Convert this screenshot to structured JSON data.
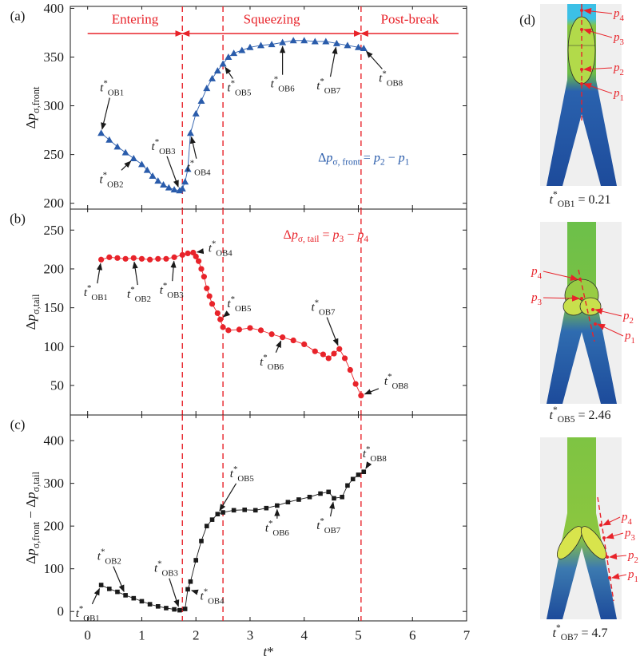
{
  "chart_data": [
    {
      "type": "line",
      "panel": "(a)",
      "ylabel": [
        {
          "t": "Δ"
        },
        {
          "it": "p"
        },
        {
          "sub": "σ,front"
        }
      ],
      "x": [
        0.25,
        0.4,
        0.55,
        0.7,
        0.85,
        1.0,
        1.1,
        1.2,
        1.3,
        1.4,
        1.5,
        1.6,
        1.7,
        1.75,
        1.8,
        1.85,
        1.9,
        2.0,
        2.1,
        2.2,
        2.3,
        2.4,
        2.5,
        2.6,
        2.7,
        2.85,
        3.0,
        3.2,
        3.4,
        3.6,
        3.8,
        4.0,
        4.2,
        4.4,
        4.6,
        4.8,
        5.0,
        5.1
      ],
      "series": [
        {
          "color": "#2a5cab",
          "marker": "triangle",
          "values": [
            272,
            265,
            258,
            252,
            246,
            240,
            234,
            228,
            223,
            219,
            216,
            214,
            213,
            215,
            222,
            235,
            272,
            292,
            305,
            318,
            328,
            336,
            343,
            350,
            354,
            357,
            360,
            362,
            363,
            365,
            367,
            367,
            366,
            366,
            364,
            362,
            360,
            359
          ]
        }
      ],
      "xlim": [
        -0.32,
        7
      ],
      "xticks": [
        0,
        1,
        2,
        3,
        4,
        5,
        6,
        7
      ],
      "ylim": [
        194,
        402
      ],
      "yticks": [
        200,
        250,
        300,
        350,
        400
      ],
      "boundaries": [
        1.75,
        2.5,
        5.05
      ],
      "phases": [
        {
          "label": "Entering",
          "range": [
            0,
            1.75
          ]
        },
        {
          "label": "Squeezing",
          "range": [
            1.75,
            5.05
          ]
        },
        {
          "label": "Post-break",
          "range": [
            5.05,
            6.85
          ]
        }
      ],
      "formula": [
        {
          "t": "Δ"
        },
        {
          "it": "p"
        },
        {
          "sub": "σ, front"
        },
        {
          "t": " = "
        },
        {
          "it": "p"
        },
        {
          "sub": "2"
        },
        {
          "t": " − "
        },
        {
          "it": "p"
        },
        {
          "sub": "1"
        }
      ],
      "formula_at": [
        5.1,
        247
      ],
      "formula_color": "#2a5cab",
      "annotations": [
        {
          "label": [
            {
              "it": "t"
            },
            {
              "sup": "*"
            },
            {
              "sub": "OB1"
            }
          ],
          "point": 0,
          "text_at": [
            0.45,
            318
          ]
        },
        {
          "label": [
            {
              "it": "t"
            },
            {
              "sup": "*"
            },
            {
              "sub": "OB2"
            }
          ],
          "point": 4,
          "text_at": [
            0.44,
            224
          ]
        },
        {
          "label": [
            {
              "it": "t"
            },
            {
              "sup": "*"
            },
            {
              "sub": "OB3"
            }
          ],
          "point": 12,
          "text_at": [
            1.4,
            258
          ]
        },
        {
          "label": [
            {
              "it": "t"
            },
            {
              "sup": "*"
            },
            {
              "sub": "OB4"
            }
          ],
          "point": 16,
          "text_at": [
            2.05,
            236
          ]
        },
        {
          "label": [
            {
              "it": "t"
            },
            {
              "sup": "*"
            },
            {
              "sub": "OB5"
            }
          ],
          "point": 22,
          "text_at": [
            2.8,
            318
          ]
        },
        {
          "label": [
            {
              "it": "t"
            },
            {
              "sup": "*"
            },
            {
              "sub": "OB6"
            }
          ],
          "point": 29,
          "text_at": [
            3.6,
            322
          ]
        },
        {
          "label": [
            {
              "it": "t"
            },
            {
              "sup": "*"
            },
            {
              "sub": "OB7"
            }
          ],
          "point": 34,
          "text_at": [
            4.45,
            320
          ]
        },
        {
          "label": [
            {
              "it": "t"
            },
            {
              "sup": "*"
            },
            {
              "sub": "OB8"
            }
          ],
          "point": 37,
          "text_at": [
            5.6,
            328
          ]
        }
      ]
    },
    {
      "type": "line",
      "panel": "(b)",
      "ylabel": [
        {
          "t": "Δ"
        },
        {
          "it": "p"
        },
        {
          "sub": "σ,tail"
        }
      ],
      "x": [
        0.25,
        0.4,
        0.55,
        0.7,
        0.85,
        1.0,
        1.15,
        1.3,
        1.45,
        1.6,
        1.75,
        1.85,
        1.95,
        2.0,
        2.05,
        2.1,
        2.15,
        2.2,
        2.25,
        2.3,
        2.4,
        2.45,
        2.5,
        2.6,
        2.8,
        3.0,
        3.2,
        3.4,
        3.6,
        3.8,
        4.0,
        4.2,
        4.35,
        4.45,
        4.55,
        4.65,
        4.75,
        4.85,
        4.95,
        5.05
      ],
      "series": [
        {
          "color": "#e8232a",
          "marker": "circle",
          "values": [
            212,
            215,
            214,
            213,
            214,
            213,
            212,
            213,
            213,
            215,
            218,
            220,
            221,
            216,
            210,
            200,
            190,
            175,
            165,
            155,
            143,
            135,
            125,
            121,
            122,
            124,
            121,
            116,
            112,
            108,
            103,
            94,
            90,
            85,
            91,
            97,
            85,
            70,
            52,
            37
          ]
        }
      ],
      "xlim": [
        -0.32,
        7
      ],
      "xticks": [
        0,
        1,
        2,
        3,
        4,
        5,
        6,
        7
      ],
      "ylim": [
        12,
        277
      ],
      "yticks": [
        50,
        100,
        150,
        200,
        250
      ],
      "boundaries": [
        1.75,
        2.5,
        5.05
      ],
      "formula": [
        {
          "t": "Δ"
        },
        {
          "it": "p"
        },
        {
          "sub": "σ, tail"
        },
        {
          "t": " = "
        },
        {
          "it": "p"
        },
        {
          "sub": "3"
        },
        {
          "t": " − "
        },
        {
          "it": "p"
        },
        {
          "sub": "4"
        }
      ],
      "formula_at": [
        4.4,
        244
      ],
      "formula_color": "#e8232a",
      "annotations": [
        {
          "label": [
            {
              "it": "t"
            },
            {
              "sup": "*"
            },
            {
              "sub": "OB1"
            }
          ],
          "point": 0,
          "text_at": [
            0.15,
            169
          ]
        },
        {
          "label": [
            {
              "it": "t"
            },
            {
              "sup": "*"
            },
            {
              "sub": "OB2"
            }
          ],
          "point": 4,
          "text_at": [
            0.95,
            167
          ]
        },
        {
          "label": [
            {
              "it": "t"
            },
            {
              "sup": "*"
            },
            {
              "sub": "OB3"
            }
          ],
          "point": 9,
          "text_at": [
            1.55,
            172
          ]
        },
        {
          "label": [
            {
              "it": "t"
            },
            {
              "sup": "*"
            },
            {
              "sub": "OB4"
            }
          ],
          "point": 12,
          "text_at": [
            2.45,
            226
          ]
        },
        {
          "label": [
            {
              "it": "t"
            },
            {
              "sup": "*"
            },
            {
              "sub": "OB5"
            }
          ],
          "point": 21,
          "text_at": [
            2.8,
            155
          ]
        },
        {
          "label": [
            {
              "it": "t"
            },
            {
              "sup": "*"
            },
            {
              "sub": "OB6"
            }
          ],
          "point": 28,
          "text_at": [
            3.4,
            80
          ]
        },
        {
          "label": [
            {
              "it": "t"
            },
            {
              "sup": "*"
            },
            {
              "sub": "OB7"
            }
          ],
          "point": 35,
          "text_at": [
            4.35,
            150
          ]
        },
        {
          "label": [
            {
              "it": "t"
            },
            {
              "sup": "*"
            },
            {
              "sub": "OB8"
            }
          ],
          "point": 39,
          "text_at": [
            5.7,
            55
          ]
        }
      ]
    },
    {
      "type": "line",
      "panel": "(c)",
      "ylabel": [
        {
          "t": "Δ"
        },
        {
          "it": "p"
        },
        {
          "sub": "σ,front"
        },
        {
          "t": " − Δ"
        },
        {
          "it": "p"
        },
        {
          "sub": "σ,tail"
        }
      ],
      "xlabel": [
        {
          "it": "t"
        },
        {
          "t": "*"
        }
      ],
      "x": [
        0.25,
        0.4,
        0.55,
        0.7,
        0.85,
        1.0,
        1.15,
        1.3,
        1.45,
        1.6,
        1.7,
        1.8,
        1.85,
        1.9,
        2.0,
        2.1,
        2.2,
        2.3,
        2.4,
        2.5,
        2.7,
        2.9,
        3.1,
        3.3,
        3.5,
        3.7,
        3.9,
        4.1,
        4.3,
        4.45,
        4.55,
        4.7,
        4.8,
        4.9,
        5.0,
        5.1
      ],
      "series": [
        {
          "color": "#1a1a1a",
          "marker": "square",
          "values": [
            62,
            53,
            46,
            38,
            31,
            24,
            17,
            12,
            8,
            5,
            3,
            6,
            52,
            70,
            120,
            165,
            200,
            215,
            228,
            232,
            237,
            238,
            237,
            242,
            248,
            256,
            262,
            268,
            276,
            280,
            265,
            268,
            295,
            310,
            320,
            327
          ]
        }
      ],
      "xlim": [
        -0.32,
        7
      ],
      "xticks": [
        0,
        1,
        2,
        3,
        4,
        5,
        6,
        7
      ],
      "ylim": [
        -22,
        460
      ],
      "yticks": [
        0,
        100,
        200,
        300,
        400
      ],
      "boundaries": [
        1.75,
        2.5,
        5.05
      ],
      "annotations": [
        {
          "label": [
            {
              "it": "t"
            },
            {
              "sup": "*"
            },
            {
              "sub": "OB1"
            }
          ],
          "point": 0,
          "text_at": [
            0.0,
            -5
          ]
        },
        {
          "label": [
            {
              "it": "t"
            },
            {
              "sup": "*"
            },
            {
              "sub": "OB2"
            }
          ],
          "point": 3,
          "text_at": [
            0.4,
            128
          ]
        },
        {
          "label": [
            {
              "it": "t"
            },
            {
              "sup": "*"
            },
            {
              "sub": "OB3"
            }
          ],
          "point": 10,
          "text_at": [
            1.45,
            100
          ]
        },
        {
          "label": [
            {
              "it": "t"
            },
            {
              "sup": "*"
            },
            {
              "sub": "OB4"
            }
          ],
          "point": 12,
          "text_at": [
            2.3,
            35
          ]
        },
        {
          "label": [
            {
              "it": "t"
            },
            {
              "sup": "*"
            },
            {
              "sub": "OB5"
            }
          ],
          "point": 18,
          "text_at": [
            2.85,
            322
          ]
        },
        {
          "label": [
            {
              "it": "t"
            },
            {
              "sup": "*"
            },
            {
              "sub": "OB6"
            }
          ],
          "point": 24,
          "text_at": [
            3.5,
            195
          ]
        },
        {
          "label": [
            {
              "it": "t"
            },
            {
              "sup": "*"
            },
            {
              "sub": "OB7"
            }
          ],
          "point": 30,
          "text_at": [
            4.45,
            200
          ]
        },
        {
          "label": [
            {
              "it": "t"
            },
            {
              "sup": "*"
            },
            {
              "sub": "OB8"
            }
          ],
          "point": 35,
          "text_at": [
            5.3,
            368
          ]
        }
      ]
    }
  ],
  "figure_d": {
    "panel": "(d)",
    "images": [
      {
        "caption": [
          {
            "it": "t"
          },
          {
            "sup": "*"
          },
          {
            "sub": "OB1"
          },
          {
            "t": " = 0.21"
          }
        ],
        "labels": [
          [
            {
              "it": "p"
            },
            {
              "sub": "4"
            }
          ],
          [
            {
              "it": "p"
            },
            {
              "sub": "3"
            }
          ],
          [
            {
              "it": "p"
            },
            {
              "sub": "2"
            }
          ],
          [
            {
              "it": "p"
            },
            {
              "sub": "1"
            }
          ]
        ]
      },
      {
        "caption": [
          {
            "it": "t"
          },
          {
            "sup": "*"
          },
          {
            "sub": "OB5"
          },
          {
            "t": " = 2.46"
          }
        ],
        "labels": [
          [
            {
              "it": "p"
            },
            {
              "sub": "4"
            }
          ],
          [
            {
              "it": "p"
            },
            {
              "sub": "3"
            }
          ],
          [
            {
              "it": "p"
            },
            {
              "sub": "2"
            }
          ],
          [
            {
              "it": "p"
            },
            {
              "sub": "1"
            }
          ]
        ]
      },
      {
        "caption": [
          {
            "it": "t"
          },
          {
            "sup": "*"
          },
          {
            "sub": "OB7"
          },
          {
            "t": " = 4.7"
          }
        ],
        "labels": [
          [
            {
              "it": "p"
            },
            {
              "sub": "4"
            }
          ],
          [
            {
              "it": "p"
            },
            {
              "sub": "3"
            }
          ],
          [
            {
              "it": "p"
            },
            {
              "sub": "2"
            }
          ],
          [
            {
              "it": "p"
            },
            {
              "sub": "1"
            }
          ]
        ]
      }
    ]
  }
}
